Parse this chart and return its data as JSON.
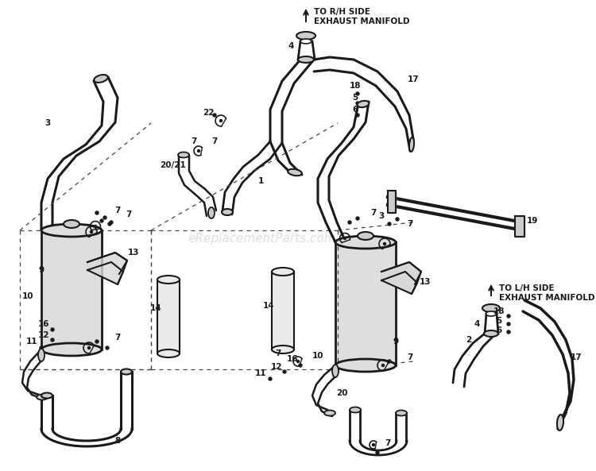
{
  "bg_color": "#ffffff",
  "line_color": "#1a1a1a",
  "dash_color": "#444444",
  "watermark": "eReplacementParts.com",
  "wm_color": "#c8c8c8",
  "fig_w": 7.5,
  "fig_h": 5.93,
  "dpi": 100,
  "title_rh": "TO R/H SIDE\nEXHAUST MANIFOLD",
  "title_lh": "TO L/H SIDE\nEXHAUST MANIFOLD"
}
